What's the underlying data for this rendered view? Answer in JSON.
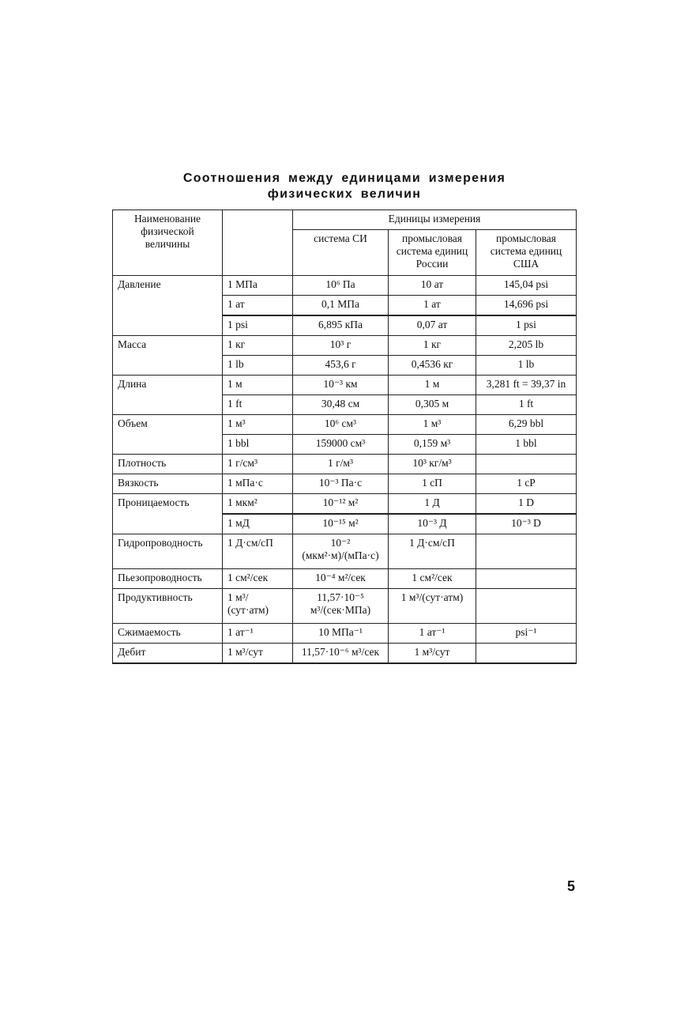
{
  "title_line1": "Соотношения между единицами измерения",
  "title_line2": "физических величин",
  "header": {
    "name": "Наименование физической величины",
    "units": "Единицы измерения",
    "si": "система СИ",
    "russia": "промысловая система единиц России",
    "usa": "промысловая система единиц США"
  },
  "groups": [
    {
      "name": "Давление",
      "rows": [
        [
          "1 МПа",
          "10⁶ Па",
          "10 ат",
          "145,04 psi"
        ],
        [
          "1 ат",
          "0,1 МПа",
          "1 ат",
          "14,696 psi"
        ],
        [
          "1 psi",
          "6,895 кПа",
          "0,07 ат",
          "1 psi"
        ]
      ]
    },
    {
      "name": "Масса",
      "rows": [
        [
          "1 кг",
          "10³ г",
          "1 кг",
          "2,205 lb"
        ],
        [
          "1 lb",
          "453,6 г",
          "0,4536 кг",
          "1 lb"
        ]
      ]
    },
    {
      "name": "Длина",
      "rows": [
        [
          "1 м",
          "10⁻³ км",
          "1 м",
          "3,281 ft = 39,37 in"
        ],
        [
          "1 ft",
          "30,48 см",
          "0,305 м",
          "1 ft"
        ]
      ]
    },
    {
      "name": "Объем",
      "rows": [
        [
          "1 м³",
          "10⁶ см³",
          "1 м³",
          "6,29 bbl"
        ],
        [
          "1 bbl",
          "159000 см³",
          "0,159 м³",
          "1 bbl"
        ]
      ]
    },
    {
      "name": "Плотность",
      "rows": [
        [
          "1 г/см³",
          "1 г/м³",
          "10³ кг/м³",
          ""
        ]
      ]
    },
    {
      "name": "Вязкость",
      "rows": [
        [
          "1 мПа·с",
          "10⁻³ Па·с",
          "1 сП",
          "1 сP"
        ]
      ]
    },
    {
      "name": "Проницаемость",
      "rows": [
        [
          "1 мкм²",
          "10⁻¹² м²",
          "1 Д",
          "1 D"
        ],
        [
          "1 мД",
          "10⁻¹⁵ м²",
          "10⁻³ Д",
          "10⁻³ D"
        ]
      ]
    },
    {
      "name": "Гидропроводность",
      "rows": [
        [
          "1 Д·см/сП",
          "10⁻² (мкм²·м)/(мПа·с)",
          "1 Д·см/сП",
          ""
        ]
      ]
    },
    {
      "name": "Пьезопроводность",
      "rows": [
        [
          "1 см²/сек",
          "10⁻⁴ м²/сек",
          "1 см²/сек",
          ""
        ]
      ]
    },
    {
      "name": "Продуктивность",
      "rows": [
        [
          "1 м³/ (сут·атм)",
          "11,57·10⁻⁵ м³/(сек·МПа)",
          "1 м³/(сут·атм)",
          ""
        ]
      ]
    },
    {
      "name": "Сжимаемость",
      "rows": [
        [
          "1 ат⁻¹",
          "10 МПа⁻¹",
          "1 ат⁻¹",
          "psi⁻¹"
        ]
      ]
    },
    {
      "name": "Дебит",
      "rows": [
        [
          "1 м³/сут",
          "11,57·10⁻⁶ м³/сек",
          "1 м³/сут",
          ""
        ]
      ]
    }
  ],
  "page_number": "5"
}
